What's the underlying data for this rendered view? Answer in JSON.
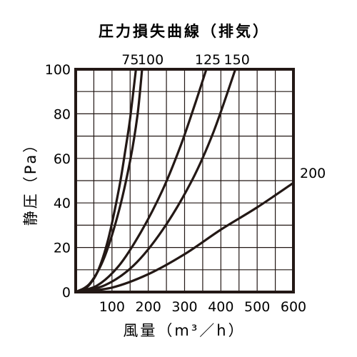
{
  "chart_data": {
    "type": "line",
    "title": "圧力損失曲線（排気）",
    "xlabel": "風量（m³／h）",
    "ylabel": "静圧（Pa）",
    "xlim": [
      0,
      600
    ],
    "ylim": [
      0,
      100
    ],
    "x_tick_labels": [
      "100",
      "200",
      "300",
      "400",
      "500",
      "600"
    ],
    "y_tick_labels": [
      "0",
      "20",
      "40",
      "60",
      "80",
      "100"
    ],
    "grid": true,
    "series": [
      {
        "name": "75",
        "x": [
          0,
          30,
          60,
          90,
          120,
          138,
          150,
          166
        ],
        "y": [
          0,
          2,
          9,
          24,
          47,
          65,
          78,
          100
        ]
      },
      {
        "name": "100",
        "x": [
          0,
          40,
          80,
          120,
          150,
          170,
          183
        ],
        "y": [
          0,
          4,
          16,
          37,
          59,
          79,
          100
        ]
      },
      {
        "name": "125",
        "x": [
          0,
          60,
          120,
          180,
          240,
          290,
          330,
          360
        ],
        "y": [
          0,
          3,
          12,
          27,
          46,
          66,
          85,
          100
        ]
      },
      {
        "name": "150",
        "x": [
          0,
          80,
          160,
          240,
          320,
          380,
          440
        ],
        "y": [
          0,
          3,
          12,
          28,
          50,
          72,
          100
        ]
      },
      {
        "name": "200",
        "x": [
          0,
          100,
          200,
          300,
          400,
          500,
          600
        ],
        "y": [
          0,
          2,
          8,
          17,
          28,
          38,
          49
        ]
      }
    ]
  }
}
